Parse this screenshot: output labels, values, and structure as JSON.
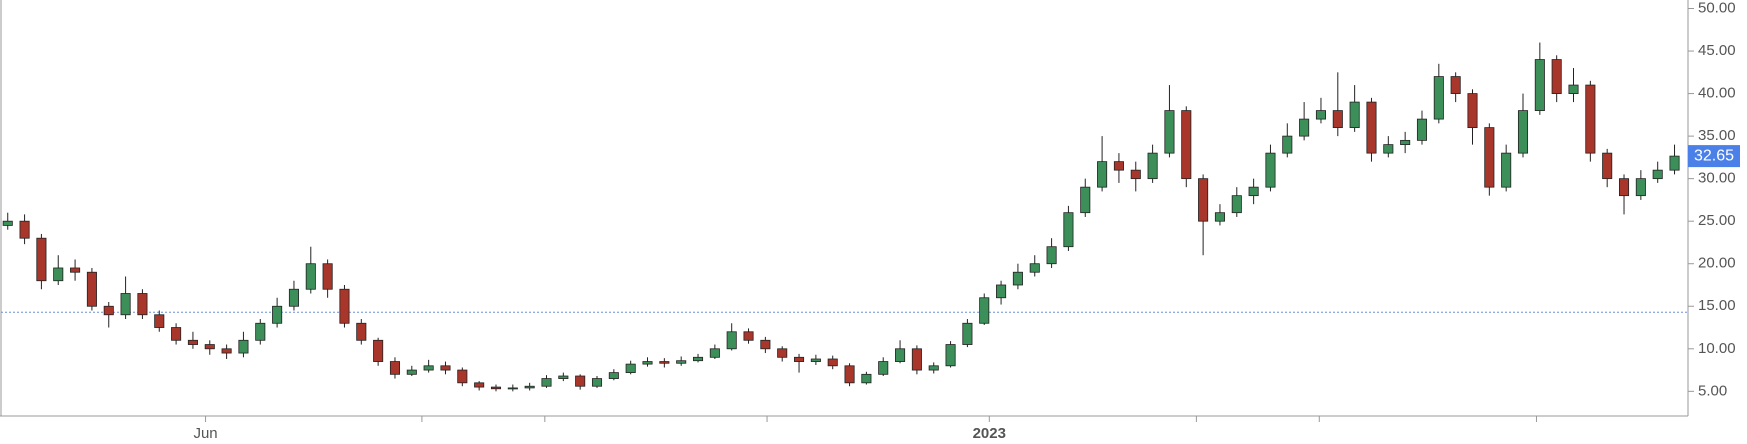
{
  "chart_data": {
    "type": "candlestick",
    "open": [
      24.5,
      25,
      23,
      18,
      19.5,
      19,
      15,
      14,
      16.5,
      14,
      12.5,
      11,
      10.5,
      10,
      9.5,
      11,
      13,
      15,
      17,
      20,
      17,
      13,
      11,
      8.5,
      7,
      7.5,
      8,
      7.5,
      6,
      5.5,
      5.3,
      5.4,
      5.6,
      6.5,
      6.8,
      5.6,
      6.5,
      7.2,
      8.2,
      8.5,
      8.3,
      8.6,
      9,
      10,
      12,
      11,
      10,
      9,
      8.5,
      8.8,
      8,
      6,
      7,
      8.5,
      10,
      7.5,
      8,
      10.5,
      13,
      16,
      17.5,
      19,
      20,
      22,
      26,
      29,
      32,
      31,
      30,
      33,
      38,
      30,
      25,
      26,
      28,
      29,
      33,
      35,
      37,
      38,
      36,
      39,
      33,
      34,
      34.5,
      37,
      42,
      40,
      36,
      29,
      33,
      38,
      44,
      40,
      41,
      33,
      30,
      28,
      30,
      31
    ],
    "high": [
      26,
      25.8,
      23.5,
      21,
      20.5,
      19.5,
      15.5,
      18.5,
      17,
      14.5,
      13,
      12,
      11,
      10.5,
      12,
      13.5,
      16,
      18,
      22,
      20.5,
      17.5,
      13.5,
      11.3,
      9,
      8,
      8.7,
      8.5,
      7.8,
      6.2,
      5.8,
      5.8,
      6,
      6.9,
      7.2,
      7,
      6.8,
      7.6,
      8.6,
      9,
      8.9,
      9.1,
      9.4,
      10.5,
      13,
      12.4,
      11.4,
      10.3,
      9.4,
      9.3,
      9.2,
      8.3,
      7.3,
      9,
      11,
      10.4,
      8.4,
      10.9,
      13.5,
      16.5,
      18,
      20,
      21,
      23,
      26.8,
      30,
      35,
      33,
      32,
      34,
      41,
      38.5,
      30.5,
      27,
      29,
      30,
      34,
      36.5,
      39,
      39.5,
      42.5,
      41,
      39.5,
      35,
      35.5,
      38,
      43.5,
      42.5,
      40.5,
      36.5,
      34,
      40,
      46,
      44.5,
      43,
      41.5,
      33.5,
      30.5,
      31,
      32,
      34
    ],
    "low": [
      24,
      22.3,
      17,
      17.5,
      18,
      14.5,
      12.5,
      13.5,
      13.5,
      12,
      10.5,
      10,
      9.3,
      8.8,
      9,
      10.5,
      12.5,
      14.5,
      16.5,
      16,
      12.5,
      10.5,
      8,
      6.5,
      6.8,
      7.2,
      7,
      5.6,
      5.1,
      5,
      5,
      5.1,
      5.4,
      6.2,
      5.2,
      5.4,
      6.3,
      7,
      7.9,
      7.8,
      8,
      8.4,
      8.8,
      9.8,
      10.6,
      9.5,
      8.5,
      7.2,
      8.1,
      7.6,
      5.6,
      5.8,
      6.8,
      8.3,
      7,
      7.1,
      7.8,
      10.2,
      12.8,
      15.2,
      17,
      18.5,
      19.5,
      21.5,
      25.5,
      28.5,
      29.5,
      28.5,
      29.5,
      32.5,
      29,
      21,
      24.5,
      25.5,
      27,
      28.5,
      32.5,
      34.5,
      36.5,
      35,
      35.5,
      32,
      32.5,
      33,
      34,
      36.5,
      39,
      34,
      28,
      28.5,
      32.5,
      37.5,
      39,
      39,
      32,
      29,
      25.8,
      27.5,
      29.5,
      30.5
    ],
    "close": [
      25,
      23,
      18,
      19.5,
      19,
      15,
      14,
      16.5,
      14,
      12.5,
      11,
      10.5,
      10,
      9.5,
      11,
      13,
      15,
      17,
      20,
      17,
      13,
      11,
      8.5,
      7,
      7.5,
      8,
      7.5,
      6,
      5.5,
      5.3,
      5.4,
      5.6,
      6.5,
      6.8,
      5.6,
      6.5,
      7.2,
      8.2,
      8.5,
      8.3,
      8.6,
      9,
      10,
      12,
      11,
      10,
      9,
      8.5,
      8.8,
      8,
      6,
      7,
      8.5,
      10,
      7.5,
      8,
      10.5,
      13,
      16,
      17.5,
      19,
      20,
      22,
      26,
      29,
      32,
      31,
      30,
      33,
      38,
      30,
      25,
      26,
      28,
      29,
      33,
      35,
      37,
      38,
      36,
      39,
      33,
      34,
      34.5,
      37,
      42,
      40,
      36,
      29,
      33,
      38,
      44,
      40,
      41,
      33,
      30,
      28,
      30,
      31,
      32.65
    ],
    "up_color": "#3d8f5a",
    "down_color": "#a8362b",
    "last_label_color": "#4a80e8",
    "reference_line": 14.3,
    "xlim": [
      -0.4,
      99.8
    ],
    "xticks": [
      {
        "value": 11.75,
        "label": "Jun"
      },
      {
        "value": 58.3,
        "label": "2023",
        "weight": "bold"
      }
    ],
    "xtick_marks": [
      24.6,
      31.9,
      45.1,
      70.6,
      77.9,
      90.8
    ],
    "ylim": [
      2.1,
      51
    ],
    "yticks": [
      {
        "value": 5,
        "label": "5.00"
      },
      {
        "value": 10,
        "label": "10.00"
      },
      {
        "value": 15,
        "label": "15.00"
      },
      {
        "value": 20,
        "label": "20.00"
      },
      {
        "value": 25,
        "label": "25.00"
      },
      {
        "value": 30,
        "label": "30.00"
      },
      {
        "value": 35,
        "label": "35.00"
      },
      {
        "value": 40,
        "label": "40.00"
      },
      {
        "value": 45,
        "label": "45.00"
      },
      {
        "value": 50,
        "label": "50.00"
      }
    ]
  }
}
